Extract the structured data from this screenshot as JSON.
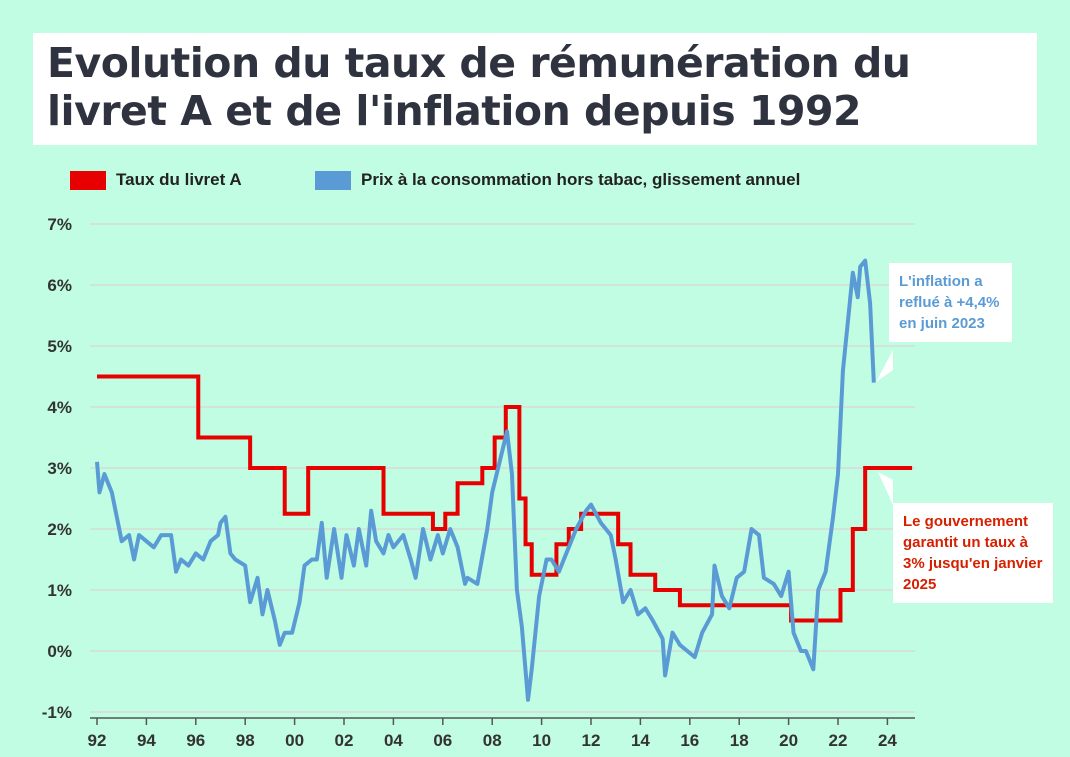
{
  "title": "Evolution du taux de rémunération du livret A et de l'inflation depuis 1992",
  "colors": {
    "background": "#c0fde2",
    "livret": "#e60000",
    "inflation": "#5b9bd5",
    "note_red": "#d62000"
  },
  "annotations": {
    "inflation": "L'inflation a reflué à +4,4% en juin 2023",
    "livret": "Le gouvernement garantit un taux à 3% jusqu'en janvier 2025"
  },
  "chart_data": {
    "type": "line",
    "title": "Evolution du taux de rémunération du livret A et de l'inflation depuis 1992",
    "xlabel": "",
    "ylabel": "",
    "xlim": [
      1992,
      2025
    ],
    "ylim": [
      -1,
      7
    ],
    "grid": true,
    "legend_placement": "top-left",
    "x_tick_labels": [
      "92",
      "94",
      "96",
      "98",
      "00",
      "02",
      "04",
      "06",
      "08",
      "10",
      "12",
      "14",
      "16",
      "18",
      "20",
      "22",
      "24"
    ],
    "y_tick_labels": [
      "-1%",
      "0%",
      "1%",
      "2%",
      "3%",
      "4%",
      "5%",
      "6%",
      "7%"
    ],
    "series": [
      {
        "name": "Taux du livret A",
        "step": true,
        "points": [
          [
            1992,
            4.5
          ],
          [
            1996.1,
            3.5
          ],
          [
            1998.2,
            3.0
          ],
          [
            1999.6,
            2.25
          ],
          [
            2000.55,
            3.0
          ],
          [
            2003.6,
            2.25
          ],
          [
            2005.6,
            2.0
          ],
          [
            2006.1,
            2.25
          ],
          [
            2006.6,
            2.75
          ],
          [
            2007.6,
            3.0
          ],
          [
            2008.1,
            3.5
          ],
          [
            2008.55,
            4.0
          ],
          [
            2009.1,
            2.5
          ],
          [
            2009.35,
            1.75
          ],
          [
            2009.6,
            1.25
          ],
          [
            2010.6,
            1.75
          ],
          [
            2011.1,
            2.0
          ],
          [
            2011.6,
            2.25
          ],
          [
            2013.1,
            1.75
          ],
          [
            2013.6,
            1.25
          ],
          [
            2014.6,
            1.0
          ],
          [
            2015.6,
            0.75
          ],
          [
            2020.1,
            0.5
          ],
          [
            2022.1,
            1.0
          ],
          [
            2022.6,
            2.0
          ],
          [
            2023.1,
            3.0
          ],
          [
            2025,
            3.0
          ]
        ]
      },
      {
        "name": "Prix à la consommation hors tabac, glissement annuel",
        "points": [
          [
            1992,
            3.1
          ],
          [
            1992.1,
            2.6
          ],
          [
            1992.3,
            2.9
          ],
          [
            1992.6,
            2.6
          ],
          [
            1993,
            1.8
          ],
          [
            1993.3,
            1.9
          ],
          [
            1993.5,
            1.5
          ],
          [
            1993.7,
            1.9
          ],
          [
            1994,
            1.8
          ],
          [
            1994.3,
            1.7
          ],
          [
            1994.6,
            1.9
          ],
          [
            1995,
            1.9
          ],
          [
            1995.2,
            1.3
          ],
          [
            1995.4,
            1.5
          ],
          [
            1995.7,
            1.4
          ],
          [
            1996,
            1.6
          ],
          [
            1996.3,
            1.5
          ],
          [
            1996.6,
            1.8
          ],
          [
            1996.9,
            1.9
          ],
          [
            1997,
            2.1
          ],
          [
            1997.2,
            2.2
          ],
          [
            1997.4,
            1.6
          ],
          [
            1997.6,
            1.5
          ],
          [
            1998,
            1.4
          ],
          [
            1998.2,
            0.8
          ],
          [
            1998.5,
            1.2
          ],
          [
            1998.7,
            0.6
          ],
          [
            1998.9,
            1.0
          ],
          [
            1999.2,
            0.5
          ],
          [
            1999.4,
            0.1
          ],
          [
            1999.6,
            0.3
          ],
          [
            1999.9,
            0.3
          ],
          [
            2000.2,
            0.8
          ],
          [
            2000.4,
            1.4
          ],
          [
            2000.7,
            1.5
          ],
          [
            2000.9,
            1.5
          ],
          [
            2001.1,
            2.1
          ],
          [
            2001.3,
            1.2
          ],
          [
            2001.6,
            2.0
          ],
          [
            2001.9,
            1.2
          ],
          [
            2002.1,
            1.9
          ],
          [
            2002.4,
            1.4
          ],
          [
            2002.6,
            2.0
          ],
          [
            2002.9,
            1.4
          ],
          [
            2003.1,
            2.3
          ],
          [
            2003.3,
            1.8
          ],
          [
            2003.6,
            1.6
          ],
          [
            2003.8,
            1.9
          ],
          [
            2004,
            1.7
          ],
          [
            2004.4,
            1.9
          ],
          [
            2004.7,
            1.5
          ],
          [
            2004.9,
            1.2
          ],
          [
            2005.2,
            2.0
          ],
          [
            2005.5,
            1.5
          ],
          [
            2005.8,
            1.9
          ],
          [
            2006,
            1.6
          ],
          [
            2006.3,
            2.0
          ],
          [
            2006.6,
            1.7
          ],
          [
            2006.9,
            1.1
          ],
          [
            2007,
            1.2
          ],
          [
            2007.4,
            1.1
          ],
          [
            2007.8,
            2.0
          ],
          [
            2008,
            2.6
          ],
          [
            2008.3,
            3.1
          ],
          [
            2008.6,
            3.6
          ],
          [
            2008.8,
            2.9
          ],
          [
            2009,
            1.0
          ],
          [
            2009.2,
            0.4
          ],
          [
            2009.45,
            -0.8
          ],
          [
            2009.6,
            -0.3
          ],
          [
            2009.9,
            0.9
          ],
          [
            2010.2,
            1.5
          ],
          [
            2010.4,
            1.5
          ],
          [
            2010.7,
            1.3
          ],
          [
            2011,
            1.6
          ],
          [
            2011.4,
            2.0
          ],
          [
            2011.8,
            2.3
          ],
          [
            2012,
            2.4
          ],
          [
            2012.4,
            2.1
          ],
          [
            2012.8,
            1.9
          ],
          [
            2013,
            1.5
          ],
          [
            2013.3,
            0.8
          ],
          [
            2013.6,
            1.0
          ],
          [
            2013.9,
            0.6
          ],
          [
            2014.2,
            0.7
          ],
          [
            2014.5,
            0.5
          ],
          [
            2014.9,
            0.2
          ],
          [
            2015,
            -0.4
          ],
          [
            2015.3,
            0.3
          ],
          [
            2015.6,
            0.1
          ],
          [
            2015.9,
            0.0
          ],
          [
            2016.2,
            -0.1
          ],
          [
            2016.5,
            0.3
          ],
          [
            2016.9,
            0.6
          ],
          [
            2017,
            1.4
          ],
          [
            2017.3,
            0.9
          ],
          [
            2017.6,
            0.7
          ],
          [
            2017.9,
            1.2
          ],
          [
            2018.2,
            1.3
          ],
          [
            2018.5,
            2.0
          ],
          [
            2018.8,
            1.9
          ],
          [
            2019,
            1.2
          ],
          [
            2019.4,
            1.1
          ],
          [
            2019.7,
            0.9
          ],
          [
            2020,
            1.3
          ],
          [
            2020.2,
            0.3
          ],
          [
            2020.5,
            0.0
          ],
          [
            2020.7,
            0.0
          ],
          [
            2021,
            -0.3
          ],
          [
            2021.2,
            1.0
          ],
          [
            2021.5,
            1.3
          ],
          [
            2021.8,
            2.2
          ],
          [
            2022,
            2.9
          ],
          [
            2022.2,
            4.6
          ],
          [
            2022.5,
            5.8
          ],
          [
            2022.6,
            6.2
          ],
          [
            2022.8,
            5.8
          ],
          [
            2022.9,
            6.3
          ],
          [
            2023.1,
            6.4
          ],
          [
            2023.3,
            5.7
          ],
          [
            2023.45,
            4.4
          ]
        ]
      }
    ]
  }
}
